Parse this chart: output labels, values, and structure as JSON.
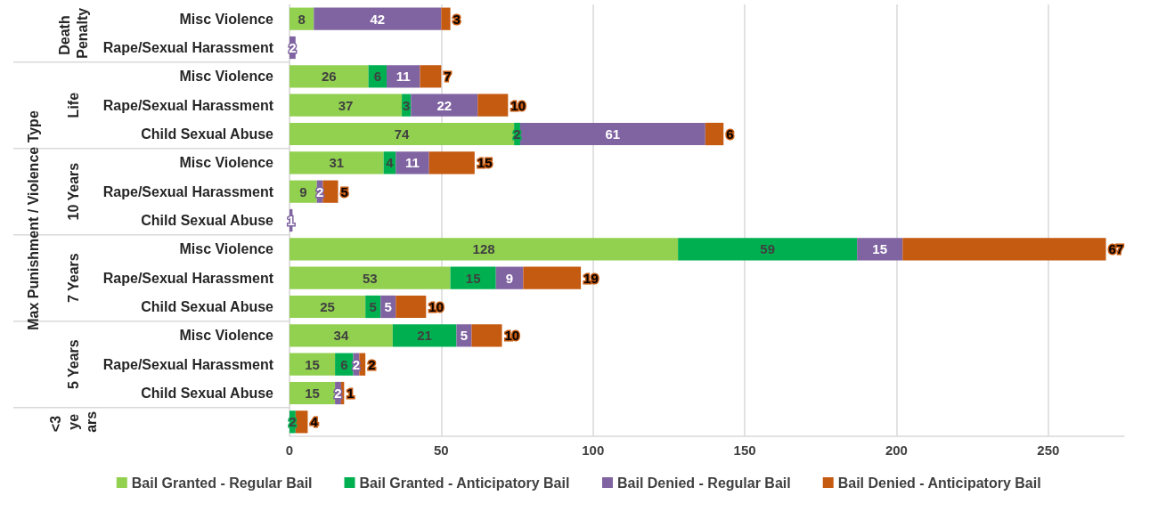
{
  "chart_data": {
    "type": "bar",
    "orientation": "horizontal",
    "stacked": true,
    "ylabel": "Max Punishment / Violence Type",
    "categories": [
      "Misc Violence",
      "Rape/Sexual Harassment",
      "Misc Violence",
      "Rape/Sexual Harassment",
      "Child Sexual Abuse",
      "Misc Violence",
      "Rape/Sexual Harassment",
      "Child Sexual Abuse",
      "Misc Violence",
      "Rape/Sexual Harassment",
      "Child Sexual Abuse",
      "Misc Violence",
      "Rape/Sexual Harassment",
      "Child Sexual Abuse",
      null
    ],
    "series": [
      {
        "name": "Bail Granted - Regular Bail",
        "color": "#92d050",
        "values": [
          8,
          null,
          26,
          37,
          74,
          31,
          9,
          null,
          128,
          53,
          25,
          34,
          15,
          15,
          null
        ]
      },
      {
        "name": "Bail Granted - Anticipatory Bail",
        "color": "#00b050",
        "values": [
          null,
          null,
          6,
          3,
          2,
          4,
          null,
          null,
          59,
          15,
          5,
          21,
          6,
          null,
          2
        ]
      },
      {
        "name": "Bail Denied - Regular Bail",
        "color": "#8064a2",
        "values": [
          42,
          2,
          11,
          22,
          61,
          11,
          2,
          1,
          15,
          9,
          5,
          5,
          2,
          2,
          null
        ]
      },
      {
        "name": "Bail Denied - Anticipatory Bail",
        "color": "#c55a11",
        "values": [
          3,
          null,
          7,
          10,
          6,
          15,
          5,
          null,
          67,
          19,
          10,
          10,
          2,
          1,
          4
        ]
      }
    ],
    "xlim": [
      0,
      275
    ],
    "xticks": [
      0,
      50,
      100,
      150,
      200,
      250
    ],
    "grid": "x",
    "legend": "bottom",
    "data_labels": true,
    "annotations": [
      "Death Penalty",
      "Life",
      "10 Years",
      "7 Years",
      "5 Years",
      "<3 years"
    ]
  }
}
